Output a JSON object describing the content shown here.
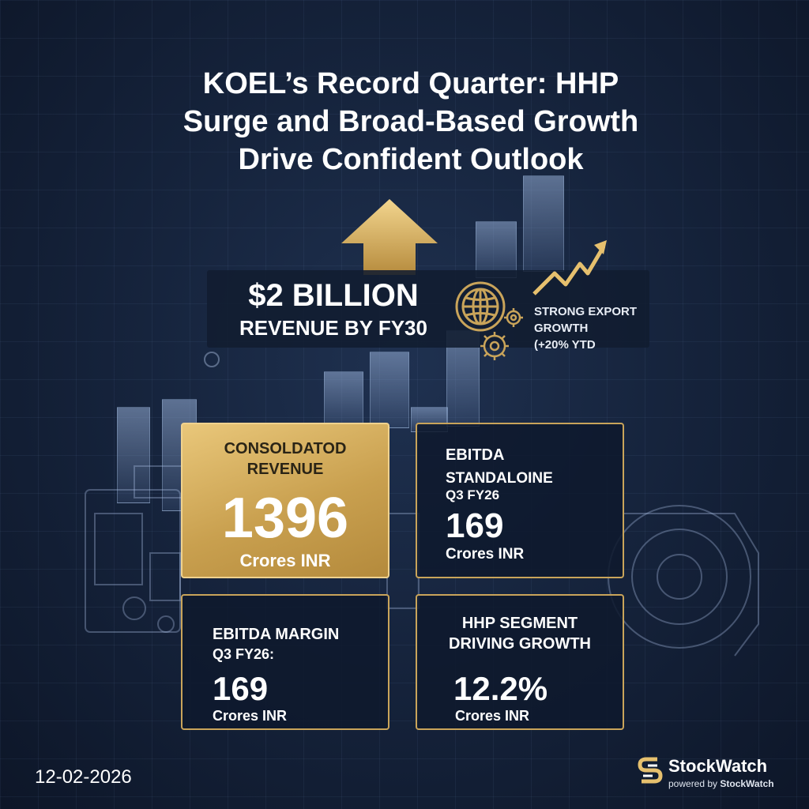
{
  "title": {
    "line1": "KOEL’s Record Quarter: HHP",
    "line2": "Surge and Broad-Based Growth",
    "line3": "Drive Confident Outlook"
  },
  "banner": {
    "headline": "$2 BILLION",
    "subline": "REVENUE BY FY30",
    "export_line1": "STRONG EXPORT",
    "export_line2": "GROWTH",
    "export_line3": "(+20% YTD"
  },
  "cards": {
    "revenue": {
      "label_line1": "CONSOLDATOD",
      "label_line2": "REVENUE",
      "value": "1396",
      "unit": "Crores INR"
    },
    "ebitda": {
      "label_line1": "EBITDA",
      "label_line2": "STANDALOINE",
      "label_line3": "Q3 FY26",
      "value": "169",
      "unit": "Crores INR"
    },
    "margin": {
      "label_line1": "EBITDA MARGIN",
      "label_line2": "Q3 FY26:",
      "value": "169",
      "unit": "Crores INR"
    },
    "hhp": {
      "label_line1": "HHP SEGMENT",
      "label_line2": "DRIVING GROWTH",
      "value": "12.2%",
      "unit": "Crores INR"
    }
  },
  "footer": {
    "date": "12-02-2026",
    "brand": "StockWatch",
    "powered_prefix": "powered by ",
    "powered_brand": "StockWatch"
  },
  "colors": {
    "gold": "#c9a45a",
    "navy": "#16243d"
  },
  "icons": [
    "up-arrow-icon",
    "globe-icon",
    "gear-icon",
    "trend-arrow-icon",
    "stockwatch-logo-icon"
  ]
}
